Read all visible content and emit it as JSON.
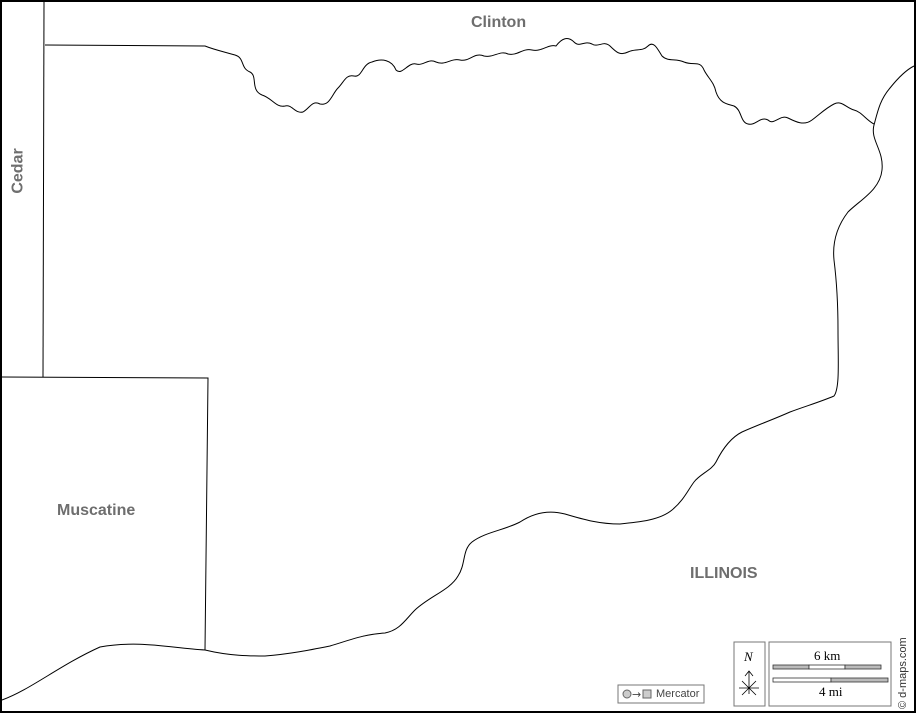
{
  "map": {
    "labels": {
      "clinton": "Clinton",
      "cedar": "Cedar",
      "muscatine": "Muscatine",
      "illinois": "ILLINOIS"
    },
    "north_arrow": "N",
    "scale_km": "6 km",
    "scale_mi": "4 mi",
    "projection": "Mercator",
    "credit": "© d-maps.com",
    "colors": {
      "line": "#000000",
      "label": "#6e6e6e",
      "background": "#ffffff"
    }
  }
}
